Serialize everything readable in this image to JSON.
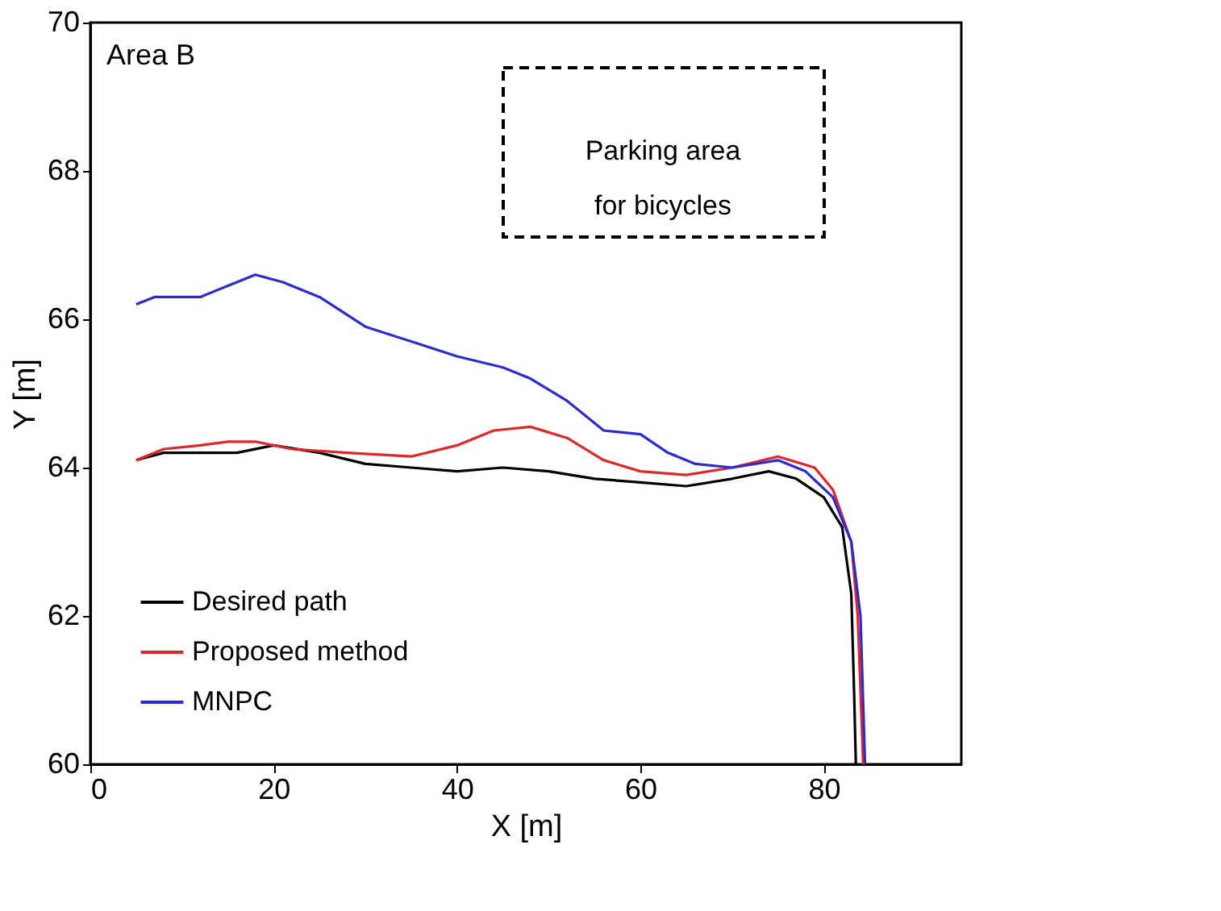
{
  "chart_data": {
    "type": "line",
    "xlabel": "X [m]",
    "ylabel": "Y [m]",
    "xlim": [
      0,
      95
    ],
    "xticks": [
      0,
      20,
      40,
      60,
      80
    ],
    "ylim": [
      60,
      70
    ],
    "yticks": [
      60,
      62,
      64,
      66,
      68,
      70
    ],
    "grid": false,
    "legend": "bottom left",
    "line_style": "solid",
    "annotations": [
      "Area B",
      "Parking area\nfor bicycles"
    ],
    "series": [
      {
        "name": "Desired path",
        "color": "#000000",
        "x": [
          5,
          8,
          12,
          16,
          20,
          25,
          30,
          35,
          40,
          45,
          50,
          55,
          60,
          65,
          70,
          74,
          77,
          80,
          82,
          83,
          83.3,
          83.5
        ],
        "values": [
          64.1,
          64.2,
          64.2,
          64.2,
          64.3,
          64.2,
          64.05,
          64.0,
          63.95,
          64.0,
          63.95,
          63.85,
          63.8,
          63.75,
          63.85,
          63.95,
          63.85,
          63.6,
          63.2,
          62.3,
          61,
          60
        ]
      },
      {
        "name": "Proposed method",
        "color": "#e0262b",
        "x": [
          5,
          8,
          12,
          15,
          18,
          22,
          28,
          35,
          40,
          44,
          48,
          52,
          56,
          60,
          65,
          70,
          75,
          79,
          81,
          83,
          83.7,
          84.3
        ],
        "values": [
          64.1,
          64.25,
          64.3,
          64.35,
          64.35,
          64.25,
          64.2,
          64.15,
          64.3,
          64.5,
          64.55,
          64.4,
          64.1,
          63.95,
          63.9,
          64.0,
          64.15,
          64.0,
          63.7,
          63.0,
          62,
          60
        ]
      },
      {
        "name": "MNPC",
        "color": "#2b2bd0",
        "x": [
          5,
          7,
          12,
          15,
          18,
          21,
          25,
          30,
          35,
          40,
          45,
          48,
          52,
          56,
          60,
          63,
          66,
          70,
          75,
          78,
          81,
          83,
          84,
          84.5
        ],
        "values": [
          66.2,
          66.3,
          66.3,
          66.45,
          66.6,
          66.5,
          66.3,
          65.9,
          65.7,
          65.5,
          65.35,
          65.2,
          64.9,
          64.5,
          64.45,
          64.2,
          64.05,
          64.0,
          64.1,
          63.95,
          63.6,
          63,
          62,
          60
        ]
      }
    ]
  }
}
